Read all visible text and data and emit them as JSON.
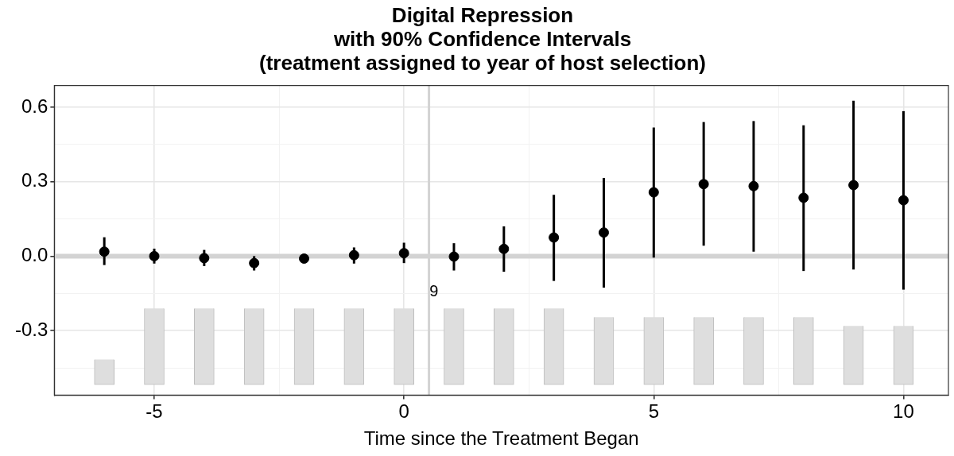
{
  "chart_data": {
    "type": "scatter",
    "title": "Digital Repression\nwith 90% Confidence Intervals\n(treatment assigned to year of host selection)",
    "xlabel": "Time since the Treatment Began",
    "series": [
      {
        "type": "bar",
        "color": "#dedede",
        "x": [
          -6,
          -5,
          -4,
          -3,
          -2,
          -1,
          0,
          1,
          2,
          3,
          4,
          5,
          6,
          7,
          8,
          9,
          10
        ],
        "base": [
          -0.518,
          -0.518,
          -0.518,
          -0.518,
          -0.518,
          -0.518,
          -0.518,
          -0.518,
          -0.518,
          -0.518,
          -0.518,
          -0.518,
          -0.518,
          -0.518,
          -0.518,
          -0.518,
          -0.518
        ],
        "values": [
          0.102,
          0.307,
          0.307,
          0.307,
          0.307,
          0.307,
          0.307,
          0.307,
          0.307,
          0.307,
          0.272,
          0.272,
          0.272,
          0.272,
          0.272,
          0.237,
          0.237
        ]
      },
      {
        "color": "#000000",
        "x": [
          -6,
          -5,
          -4,
          -3,
          -2,
          -1,
          0,
          1,
          2,
          3,
          4,
          5,
          6,
          7,
          8,
          9,
          10
        ],
        "values": [
          0.018,
          0.0,
          -0.008,
          -0.028,
          -0.01,
          0.004,
          0.012,
          -0.002,
          0.029,
          0.075,
          0.095,
          0.257,
          0.29,
          0.282,
          0.235,
          0.286,
          0.225
        ],
        "errors": [
          [
            -0.036,
            0.076
          ],
          [
            -0.03,
            0.03
          ],
          [
            -0.04,
            0.025
          ],
          [
            -0.058,
            0.0
          ],
          [
            -0.02,
            0.0
          ],
          [
            -0.03,
            0.035
          ],
          [
            -0.028,
            0.054
          ],
          [
            -0.058,
            0.052
          ],
          [
            -0.063,
            0.12
          ],
          [
            -0.1,
            0.247
          ],
          [
            -0.127,
            0.315
          ],
          [
            -0.006,
            0.518
          ],
          [
            0.042,
            0.54
          ],
          [
            0.018,
            0.544
          ],
          [
            -0.06,
            0.527
          ],
          [
            -0.054,
            0.626
          ],
          [
            -0.135,
            0.584
          ]
        ]
      }
    ],
    "xlim": [
      -7.0,
      10.9
    ],
    "ylim": [
      -0.56,
      0.687
    ],
    "xticks": [
      -5,
      {
        "value": -2.5,
        "label": null
      },
      0,
      {
        "value": 2.5,
        "label": null
      },
      5,
      {
        "value": 7.5,
        "label": null
      },
      10
    ],
    "yticks": [
      -0.3,
      {
        "value": -0.45,
        "label": null
      },
      {
        "value": -0.15,
        "label": null
      },
      {
        "value": 0,
        "label": "0.0"
      },
      {
        "value": 0.15,
        "label": null
      },
      0.3,
      {
        "value": 0.45,
        "label": null
      },
      0.6
    ],
    "ref_lines": [
      {
        "axis": "y",
        "value": 0,
        "color": "#d3d3d3"
      },
      {
        "axis": "x",
        "value": 0.5,
        "color": "#d3d3d3"
      }
    ],
    "annotations": [
      {
        "text": "9",
        "x": 0.6,
        "y": -0.145
      }
    ],
    "grid": true,
    "legend": false,
    "marker": "circle"
  }
}
